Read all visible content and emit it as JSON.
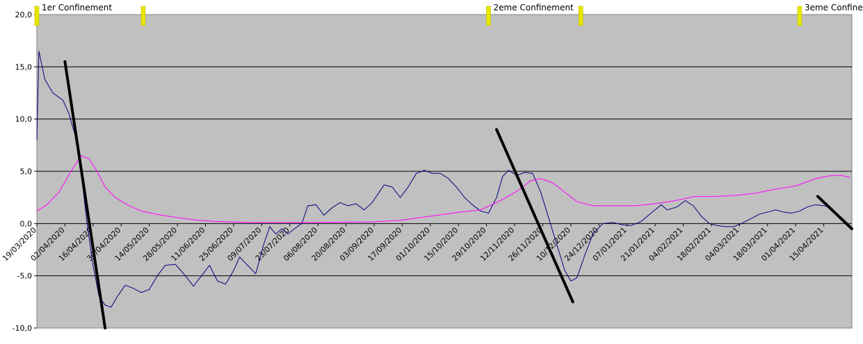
{
  "chart_data": {
    "type": "line",
    "title": "",
    "xlabel": "",
    "ylabel": "",
    "ylim": [
      -10,
      20
    ],
    "yticks": [
      "20,0",
      "15,0",
      "10,0",
      "5,0",
      "0,0",
      "-5,0",
      "-10,0"
    ],
    "xlim": [
      "2020-03-19",
      "2021-04-29"
    ],
    "x_tick_labels": [
      "19/03/2020",
      "02/04/2020",
      "16/04/2020",
      "30/04/2020",
      "14/05/2020",
      "28/05/2020",
      "11/06/2020",
      "25/06/2020",
      "09/07/2020",
      "23/07/2020",
      "06/08/2020",
      "20/08/2020",
      "03/09/2020",
      "17/09/2020",
      "01/10/2020",
      "15/10/2020",
      "29/10/2020",
      "12/11/2020",
      "26/11/2020",
      "10/12/2020",
      "24/12/2020",
      "07/01/2021",
      "21/01/2021",
      "04/02/2021",
      "18/02/2021",
      "04/03/2021",
      "18/03/2021",
      "01/04/2021",
      "15/04/2021"
    ],
    "grid": true,
    "legend": "none",
    "plot_bg": "#c0c0c0",
    "series": [
      {
        "color": "#000080",
        "points": [
          [
            "2020-03-19",
            8
          ],
          [
            "2020-03-20",
            16.5
          ],
          [
            "2020-03-23",
            13.8
          ],
          [
            "2020-03-27",
            12.5
          ],
          [
            "2020-04-01",
            11.8
          ],
          [
            "2020-04-04",
            10.5
          ],
          [
            "2020-04-07",
            8.5
          ],
          [
            "2020-04-10",
            5
          ],
          [
            "2020-04-13",
            0
          ],
          [
            "2020-04-16",
            -4
          ],
          [
            "2020-04-19",
            -7
          ],
          [
            "2020-04-22",
            -7.8
          ],
          [
            "2020-04-25",
            -8
          ],
          [
            "2020-04-28",
            -7
          ],
          [
            "2020-05-02",
            -5.9
          ],
          [
            "2020-05-06",
            -6.2
          ],
          [
            "2020-05-10",
            -6.6
          ],
          [
            "2020-05-14",
            -6.3
          ],
          [
            "2020-05-18",
            -5
          ],
          [
            "2020-05-22",
            -4
          ],
          [
            "2020-05-27",
            -3.9
          ],
          [
            "2020-06-01",
            -5
          ],
          [
            "2020-06-05",
            -6
          ],
          [
            "2020-06-09",
            -5
          ],
          [
            "2020-06-13",
            -4
          ],
          [
            "2020-06-17",
            -5.5
          ],
          [
            "2020-06-21",
            -5.8
          ],
          [
            "2020-06-25",
            -4.5
          ],
          [
            "2020-06-28",
            -3.2
          ],
          [
            "2020-07-02",
            -4
          ],
          [
            "2020-07-06",
            -4.8
          ],
          [
            "2020-07-10",
            -2
          ],
          [
            "2020-07-13",
            -0.3
          ],
          [
            "2020-07-16",
            -1
          ],
          [
            "2020-07-19",
            -0.5
          ],
          [
            "2020-07-22",
            -1
          ],
          [
            "2020-07-26",
            -0.4
          ],
          [
            "2020-07-29",
            0
          ],
          [
            "2020-08-01",
            1.7
          ],
          [
            "2020-08-05",
            1.8
          ],
          [
            "2020-08-09",
            0.8
          ],
          [
            "2020-08-13",
            1.5
          ],
          [
            "2020-08-17",
            2
          ],
          [
            "2020-08-21",
            1.7
          ],
          [
            "2020-08-25",
            1.9
          ],
          [
            "2020-08-29",
            1.3
          ],
          [
            "2020-09-02",
            2
          ],
          [
            "2020-09-08",
            3.7
          ],
          [
            "2020-09-12",
            3.5
          ],
          [
            "2020-09-16",
            2.5
          ],
          [
            "2020-09-20",
            3.5
          ],
          [
            "2020-09-24",
            4.8
          ],
          [
            "2020-09-28",
            5.1
          ],
          [
            "2020-10-02",
            4.8
          ],
          [
            "2020-10-06",
            4.8
          ],
          [
            "2020-10-10",
            4.3
          ],
          [
            "2020-10-14",
            3.5
          ],
          [
            "2020-10-18",
            2.5
          ],
          [
            "2020-10-22",
            1.8
          ],
          [
            "2020-10-26",
            1.2
          ],
          [
            "2020-10-30",
            1
          ],
          [
            "2020-11-03",
            2.5
          ],
          [
            "2020-11-06",
            4.5
          ],
          [
            "2020-11-09",
            5.1
          ],
          [
            "2020-11-13",
            4.6
          ],
          [
            "2020-11-17",
            4.9
          ],
          [
            "2020-11-21",
            4.8
          ],
          [
            "2020-11-25",
            3
          ],
          [
            "2020-11-29",
            0.5
          ],
          [
            "2020-12-03",
            -2
          ],
          [
            "2020-12-07",
            -4.5
          ],
          [
            "2020-12-10",
            -5.5
          ],
          [
            "2020-12-13",
            -5.2
          ],
          [
            "2020-12-17",
            -3
          ],
          [
            "2020-12-21",
            -1
          ],
          [
            "2020-12-26",
            0
          ],
          [
            "2020-12-31",
            0.1
          ],
          [
            "2021-01-04",
            -0.1
          ],
          [
            "2021-01-09",
            -0.2
          ],
          [
            "2021-01-14",
            0.2
          ],
          [
            "2021-01-19",
            1
          ],
          [
            "2021-01-24",
            1.8
          ],
          [
            "2021-01-27",
            1.3
          ],
          [
            "2021-02-01",
            1.6
          ],
          [
            "2021-02-05",
            2.2
          ],
          [
            "2021-02-09",
            1.7
          ],
          [
            "2021-02-13",
            0.7
          ],
          [
            "2021-02-17",
            0
          ],
          [
            "2021-02-21",
            -0.2
          ],
          [
            "2021-02-25",
            -0.3
          ],
          [
            "2021-03-01",
            -0.3
          ],
          [
            "2021-03-05",
            0
          ],
          [
            "2021-03-10",
            0.5
          ],
          [
            "2021-03-14",
            0.9
          ],
          [
            "2021-03-18",
            1.1
          ],
          [
            "2021-03-22",
            1.3
          ],
          [
            "2021-03-26",
            1.1
          ],
          [
            "2021-03-30",
            1
          ],
          [
            "2021-04-03",
            1.2
          ],
          [
            "2021-04-07",
            1.6
          ],
          [
            "2021-04-11",
            1.8
          ],
          [
            "2021-04-15",
            1.7
          ],
          [
            "2021-04-19",
            1.5
          ]
        ]
      },
      {
        "color": "#ff00ff",
        "points": [
          [
            "2020-03-19",
            1.2
          ],
          [
            "2020-03-24",
            1.8
          ],
          [
            "2020-03-30",
            3
          ],
          [
            "2020-04-05",
            5
          ],
          [
            "2020-04-10",
            6.5
          ],
          [
            "2020-04-14",
            6.2
          ],
          [
            "2020-04-18",
            5
          ],
          [
            "2020-04-22",
            3.5
          ],
          [
            "2020-04-27",
            2.5
          ],
          [
            "2020-05-03",
            1.8
          ],
          [
            "2020-05-10",
            1.2
          ],
          [
            "2020-05-17",
            0.9
          ],
          [
            "2020-05-27",
            0.6
          ],
          [
            "2020-06-06",
            0.35
          ],
          [
            "2020-06-16",
            0.2
          ],
          [
            "2020-07-01",
            0.1
          ],
          [
            "2020-08-01",
            0.1
          ],
          [
            "2020-09-01",
            0.15
          ],
          [
            "2020-09-16",
            0.3
          ],
          [
            "2020-10-01",
            0.7
          ],
          [
            "2020-10-16",
            1.1
          ],
          [
            "2020-10-26",
            1.3
          ],
          [
            "2020-11-06",
            2.3
          ],
          [
            "2020-11-14",
            3.2
          ],
          [
            "2020-11-20",
            4.1
          ],
          [
            "2020-11-25",
            4.3
          ],
          [
            "2020-12-01",
            3.9
          ],
          [
            "2020-12-07",
            3
          ],
          [
            "2020-12-13",
            2.1
          ],
          [
            "2020-12-21",
            1.7
          ],
          [
            "2021-01-01",
            1.7
          ],
          [
            "2021-01-11",
            1.7
          ],
          [
            "2021-01-21",
            1.9
          ],
          [
            "2021-01-31",
            2.2
          ],
          [
            "2021-02-10",
            2.6
          ],
          [
            "2021-02-20",
            2.6
          ],
          [
            "2021-03-02",
            2.7
          ],
          [
            "2021-03-12",
            2.9
          ],
          [
            "2021-03-22",
            3.3
          ],
          [
            "2021-04-01",
            3.6
          ],
          [
            "2021-04-11",
            4.3
          ],
          [
            "2021-04-19",
            4.6
          ],
          [
            "2021-04-24",
            4.6
          ],
          [
            "2021-04-28",
            4.4
          ]
        ]
      }
    ],
    "annotations": [
      {
        "text": "1er Confinement",
        "markers": [
          "2020-03-19",
          "2020-05-11"
        ]
      },
      {
        "text": "2eme Confinement",
        "markers": [
          "2020-10-30",
          "2020-12-15"
        ]
      },
      {
        "text": "3eme Confine",
        "markers": [
          "2021-04-03"
        ]
      }
    ],
    "drawn_lines": [
      {
        "start": [
          "2020-04-02",
          15.5
        ],
        "end": [
          "2020-04-22",
          -10
        ]
      },
      {
        "start": [
          "2020-11-03",
          9
        ],
        "end": [
          "2020-12-11",
          -7.5
        ]
      },
      {
        "start": [
          "2021-04-12",
          2.6
        ],
        "end": [
          "2021-04-29",
          -0.5
        ]
      }
    ]
  }
}
